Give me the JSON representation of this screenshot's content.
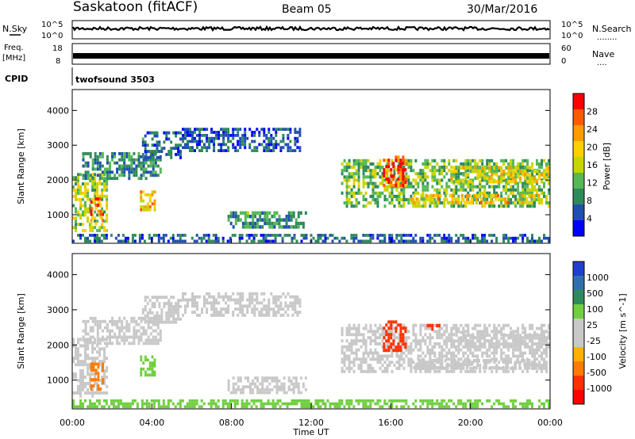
{
  "header": {
    "station": "Saskatoon (fitACF)",
    "beam": "Beam 05",
    "date": "30/Mar/2016"
  },
  "panels": {
    "nsky_label": "N.Sky",
    "nsearch_label": "N.Search",
    "nsearch_dots": "........",
    "freq_label_top": "Freq.",
    "freq_label_bottom": "[MHz]",
    "nave_label": "Nave",
    "nave_dots": "....",
    "cpid_label": "CPID",
    "cpid_value": "twofsound 3503",
    "noise_ticks_left": [
      "10^5",
      "10^0"
    ],
    "noise_ticks_right": [
      "10^5",
      "10^0"
    ],
    "freq_ticks": [
      "18",
      "8"
    ],
    "nave_ticks": [
      "60",
      "0"
    ]
  },
  "x_axis": {
    "label": "Time UT",
    "ticks": [
      "00:00",
      "04:00",
      "08:00",
      "12:00",
      "16:00",
      "20:00",
      "00:00"
    ]
  },
  "colors": {
    "power_scale": [
      "#0000ff",
      "#1f4fb0",
      "#2e8a5a",
      "#55b855",
      "#c8d400",
      "#ffd000",
      "#ff9a00",
      "#ff5a00",
      "#ff0000"
    ],
    "velocity_scale": [
      "#1f3fcf",
      "#2f6fb0",
      "#2e8a5a",
      "#6fcf3f",
      "#c8c8c8",
      "#c8c8c8",
      "#ffb000",
      "#ff7a00",
      "#ff3000",
      "#ff0000"
    ]
  },
  "chart_data": [
    {
      "type": "heatmap",
      "name": "power",
      "title": "Power [dB]",
      "xlabel": "Time UT",
      "ylabel": "Slant Range [km]",
      "xlim_hours": [
        0,
        24
      ],
      "ylim_km": [
        180,
        4600
      ],
      "yticks": [
        1000,
        2000,
        3000,
        4000
      ],
      "colorbar": {
        "label": "Power [dB]",
        "ticks": [
          "28",
          "24",
          "20",
          "16",
          "12",
          "8",
          "4"
        ],
        "range": [
          0,
          30
        ]
      },
      "echo_regions": [
        {
          "t0": 0.0,
          "t1": 1.8,
          "r0": 500,
          "r1": 2200,
          "v": 14
        },
        {
          "t0": 0.9,
          "t1": 1.6,
          "r0": 700,
          "r1": 1500,
          "v": 24
        },
        {
          "t0": 0.5,
          "t1": 4.5,
          "r0": 2000,
          "r1": 2800,
          "v": 8
        },
        {
          "t0": 3.5,
          "t1": 5.5,
          "r0": 2600,
          "r1": 3400,
          "v": 6
        },
        {
          "t0": 3.4,
          "t1": 4.2,
          "r0": 1100,
          "r1": 1700,
          "v": 18
        },
        {
          "t0": 5.5,
          "t1": 11.5,
          "r0": 2800,
          "r1": 3500,
          "v": 5
        },
        {
          "t0": 7.8,
          "t1": 11.8,
          "r0": 600,
          "r1": 1100,
          "v": 9
        },
        {
          "t0": 13.5,
          "t1": 24.0,
          "r0": 1200,
          "r1": 2600,
          "v": 12
        },
        {
          "t0": 15.6,
          "t1": 16.8,
          "r0": 1800,
          "r1": 2700,
          "v": 26
        },
        {
          "t0": 17.0,
          "t1": 23.5,
          "r0": 1300,
          "r1": 1600,
          "v": 18
        },
        {
          "t0": 19.0,
          "t1": 24.0,
          "r0": 1900,
          "r1": 2400,
          "v": 16
        },
        {
          "t0": 0.0,
          "t1": 24.0,
          "r0": 200,
          "r1": 450,
          "v": 6
        }
      ]
    },
    {
      "type": "heatmap",
      "name": "velocity",
      "title": "Velocity [m s^-1]",
      "xlabel": "Time UT",
      "ylabel": "Slant Range [km]",
      "xlim_hours": [
        0,
        24
      ],
      "ylim_km": [
        180,
        4600
      ],
      "yticks": [
        1000,
        2000,
        3000,
        4000
      ],
      "colorbar": {
        "label": "Velocity [m s^-1]",
        "ticks": [
          "1000",
          "500",
          "100",
          "25",
          "-25",
          "-100",
          "-500",
          "-1000"
        ],
        "range": [
          -1200,
          1200
        ]
      },
      "echo_regions": [
        {
          "t0": 0.0,
          "t1": 1.8,
          "r0": 500,
          "r1": 2200,
          "v": 0
        },
        {
          "t0": 0.9,
          "t1": 1.6,
          "r0": 700,
          "r1": 1500,
          "v": -200
        },
        {
          "t0": 0.5,
          "t1": 4.5,
          "r0": 2000,
          "r1": 2800,
          "v": 0
        },
        {
          "t0": 3.5,
          "t1": 5.5,
          "r0": 2600,
          "r1": 3400,
          "v": 0
        },
        {
          "t0": 3.4,
          "t1": 4.2,
          "r0": 1100,
          "r1": 1700,
          "v": 60
        },
        {
          "t0": 5.5,
          "t1": 11.5,
          "r0": 2800,
          "r1": 3500,
          "v": 0
        },
        {
          "t0": 7.8,
          "t1": 11.8,
          "r0": 600,
          "r1": 1100,
          "v": 0
        },
        {
          "t0": 13.5,
          "t1": 24.0,
          "r0": 1200,
          "r1": 2600,
          "v": 0
        },
        {
          "t0": 15.6,
          "t1": 16.8,
          "r0": 1800,
          "r1": 2700,
          "v": -700
        },
        {
          "t0": 17.8,
          "t1": 18.5,
          "r0": 2300,
          "r1": 2600,
          "v": -600
        },
        {
          "t0": 17.0,
          "t1": 23.5,
          "r0": 1300,
          "r1": 1600,
          "v": 0
        },
        {
          "t0": 19.0,
          "t1": 24.0,
          "r0": 1900,
          "r1": 2400,
          "v": 0
        },
        {
          "t0": 0.0,
          "t1": 24.0,
          "r0": 200,
          "r1": 450,
          "v": 80
        }
      ]
    }
  ]
}
